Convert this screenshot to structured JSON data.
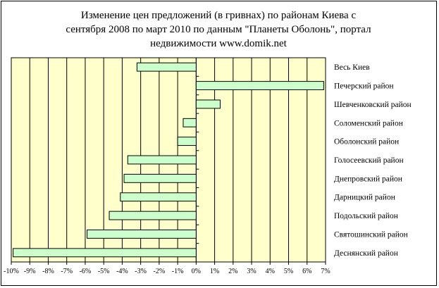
{
  "chart_data": {
    "type": "bar",
    "orientation": "horizontal",
    "title": "Изменение цен предложений (в гривнах) по районам Киева с сентября 2008 по март 2010 по данным \"Планеты Оболонь\", портал недвижимости www.domik.net",
    "title_lines": [
      "Изменение цен предложений (в гривнах) по районам Киева с",
      "сентября 2008 по март 2010 по данным \"Планеты Оболонь\", портал",
      "недвижимости www.domik.net"
    ],
    "categories": [
      "Весь Киев",
      "Печерский район",
      "Шевченковский район",
      "Соломенский район",
      "Оболонский район",
      "Голосеевский район",
      "Днепровский район",
      "Дарницкий район",
      "Подольский район",
      "Святошинский район",
      "Деснянский район"
    ],
    "values": [
      -3.2,
      6.9,
      1.3,
      -0.7,
      -1.0,
      -3.7,
      -3.9,
      -4.1,
      -4.7,
      -5.9,
      -9.9
    ],
    "xlim": [
      -10,
      7
    ],
    "x_ticks": [
      -10,
      -9,
      -8,
      -7,
      -6,
      -5,
      -4,
      -3,
      -2,
      -1,
      0,
      1,
      2,
      3,
      4,
      5,
      6,
      7
    ],
    "x_tick_labels": [
      "-10%",
      "-9%",
      "-8%",
      "-7%",
      "-6%",
      "-5%",
      "-4%",
      "-3%",
      "-2%",
      "-1%",
      "0%",
      "1%",
      "2%",
      "3%",
      "4%",
      "5%",
      "6%",
      "7%"
    ],
    "xlabel": "",
    "ylabel": "",
    "grid": true,
    "legend": "none",
    "colors": {
      "plot_background": "#ffffcc",
      "bar_fill": "#ccffcc",
      "bar_stroke": "#000000",
      "gridline": "#000000"
    }
  }
}
